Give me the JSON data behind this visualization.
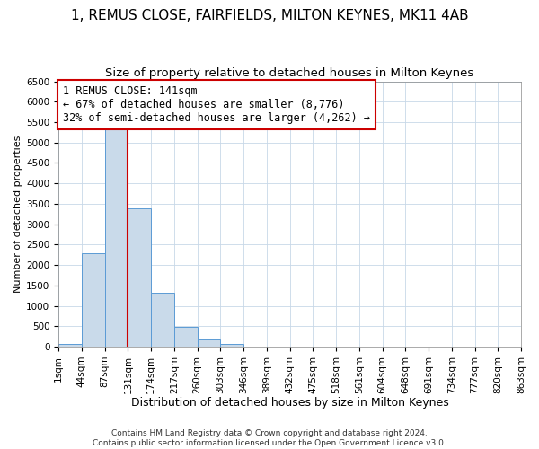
{
  "title": "1, REMUS CLOSE, FAIRFIELDS, MILTON KEYNES, MK11 4AB",
  "subtitle": "Size of property relative to detached houses in Milton Keynes",
  "xlabel": "Distribution of detached houses by size in Milton Keynes",
  "ylabel": "Number of detached properties",
  "bar_values": [
    70,
    2280,
    5430,
    3390,
    1320,
    480,
    185,
    75,
    0,
    0,
    0,
    0,
    0,
    0,
    0,
    0,
    0,
    0,
    0,
    0
  ],
  "bin_edges_labels": [
    "1sqm",
    "44sqm",
    "87sqm",
    "131sqm",
    "174sqm",
    "217sqm",
    "260sqm",
    "303sqm",
    "346sqm",
    "389sqm",
    "432sqm",
    "475sqm",
    "518sqm",
    "561sqm",
    "604sqm",
    "648sqm",
    "691sqm",
    "734sqm",
    "777sqm",
    "820sqm",
    "863sqm"
  ],
  "bar_color": "#c9daea",
  "bar_edge_color": "#5b9bd5",
  "vline_x": 3.0,
  "vline_color": "#cc0000",
  "annotation_text": "1 REMUS CLOSE: 141sqm\n← 67% of detached houses are smaller (8,776)\n32% of semi-detached houses are larger (4,262) →",
  "annotation_box_edge_color": "#cc0000",
  "annotation_box_face_color": "#ffffff",
  "annotation_fontsize": 8.5,
  "ylim": [
    0,
    6500
  ],
  "yticks": [
    0,
    500,
    1000,
    1500,
    2000,
    2500,
    3000,
    3500,
    4000,
    4500,
    5000,
    5500,
    6000,
    6500
  ],
  "footer_text": "Contains HM Land Registry data © Crown copyright and database right 2024.\nContains public sector information licensed under the Open Government Licence v3.0.",
  "title_fontsize": 11,
  "subtitle_fontsize": 9.5,
  "xlabel_fontsize": 9,
  "ylabel_fontsize": 8,
  "tick_fontsize": 7.5,
  "footer_fontsize": 6.5,
  "background_color": "#ffffff",
  "grid_color": "#c8d8e8"
}
